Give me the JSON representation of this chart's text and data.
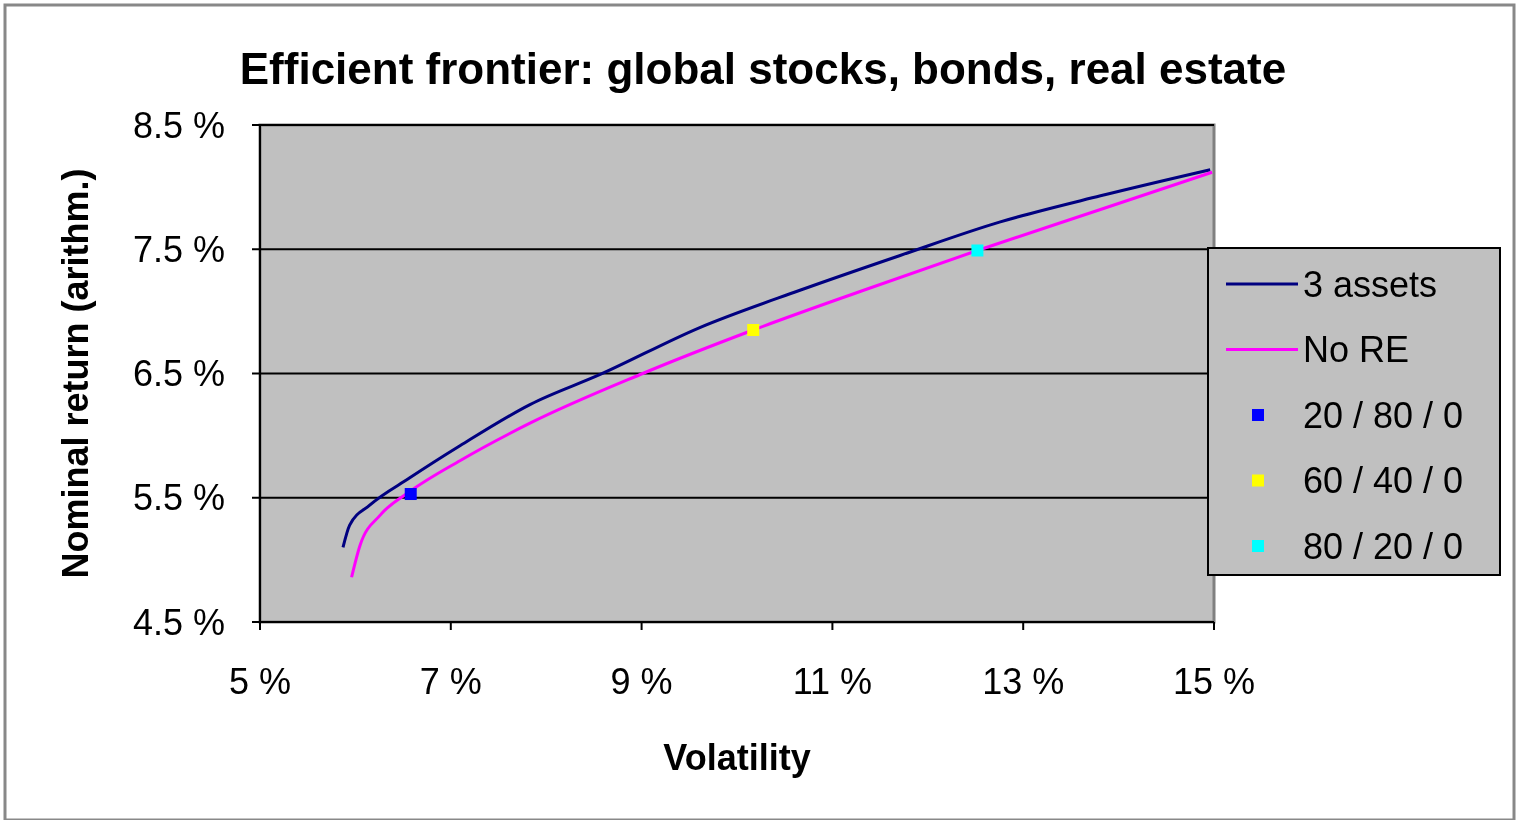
{
  "chart_data": {
    "type": "line",
    "title": "Efficient frontier: global stocks, bonds, real estate",
    "xlabel": "Volatility",
    "ylabel": "Nominal return (arithm.)",
    "xlim": [
      5,
      15
    ],
    "xticks": [
      {
        "value": 5,
        "label": "5 %"
      },
      {
        "value": 7,
        "label": "7 %"
      },
      {
        "value": 9,
        "label": "9 %"
      },
      {
        "value": 11,
        "label": "11 %"
      },
      {
        "value": 13,
        "label": "13 %"
      },
      {
        "value": 15,
        "label": "15 %"
      }
    ],
    "ylim": [
      4.5,
      8.5
    ],
    "yticks": [
      {
        "value": 4.5,
        "label": "4.5 %"
      },
      {
        "value": 5.5,
        "label": "5.5 %"
      },
      {
        "value": 6.5,
        "label": "6.5 %"
      },
      {
        "value": 7.5,
        "label": "7.5 %"
      },
      {
        "value": 8.5,
        "label": "8.5 %"
      }
    ],
    "grid": "y",
    "legend": "right",
    "marker": "none",
    "line_style": "solid",
    "series": [
      {
        "name": "3 assets",
        "color": "#000080",
        "x": [
          5.87,
          5.94,
          6.15,
          6.57,
          7.1,
          7.83,
          8.56,
          9.61,
          10.66,
          11.71,
          12.76,
          13.81,
          14.96
        ],
        "values": [
          5.1,
          5.28,
          5.44,
          5.66,
          5.92,
          6.25,
          6.49,
          6.87,
          7.17,
          7.45,
          7.72,
          7.93,
          8.14
        ]
      },
      {
        "name": "No RE",
        "color": "#ff00ff",
        "x": [
          5.96,
          6.05,
          6.26,
          6.57,
          7.1,
          7.83,
          8.98,
          10.17,
          11.29,
          12.52,
          13.81,
          14.98
        ],
        "values": [
          4.86,
          5.12,
          5.36,
          5.55,
          5.8,
          6.1,
          6.49,
          6.85,
          7.16,
          7.49,
          7.82,
          8.12
        ]
      },
      {
        "name": "20 / 80 / 0",
        "color": "#0000ff",
        "type": "scatter",
        "marker": "square",
        "x": [
          6.58
        ],
        "values": [
          5.53
        ]
      },
      {
        "name": "60 / 40 / 0",
        "color": "#ffff00",
        "type": "scatter",
        "marker": "square",
        "x": [
          10.17
        ],
        "values": [
          6.85
        ]
      },
      {
        "name": "80 / 20 / 0",
        "color": "#00ffff",
        "type": "scatter",
        "marker": "square",
        "x": [
          12.52
        ],
        "values": [
          7.49
        ]
      }
    ]
  }
}
